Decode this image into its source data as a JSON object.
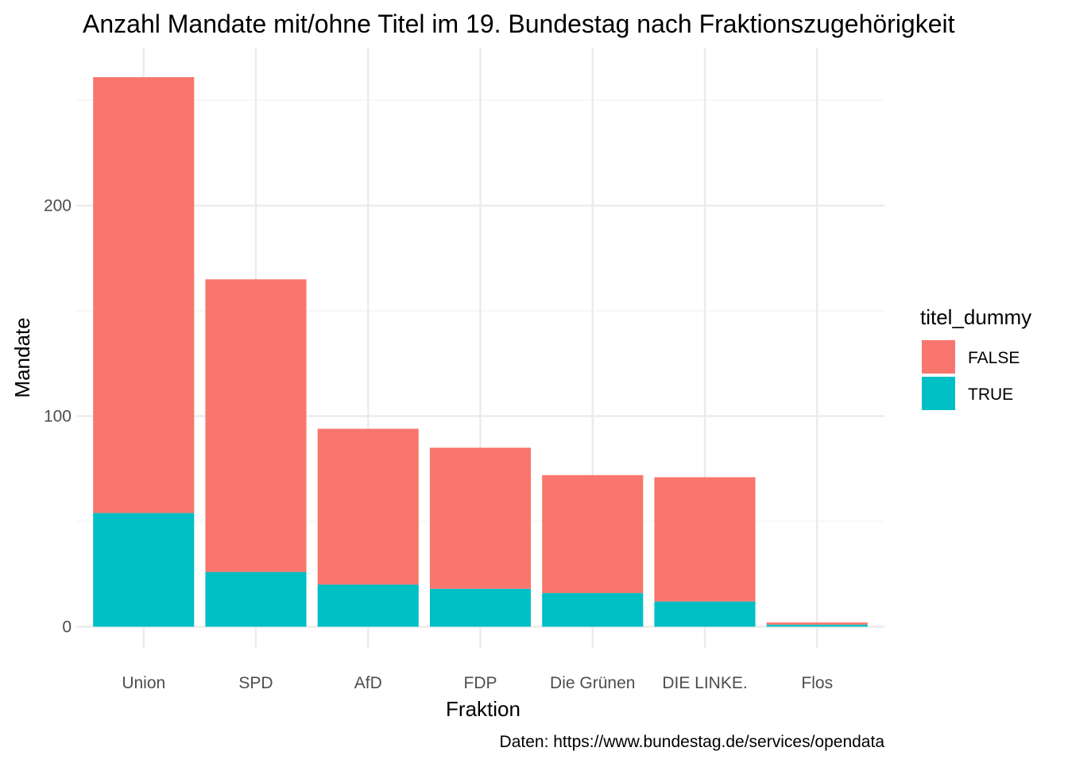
{
  "chart_data": {
    "type": "bar",
    "stacked": true,
    "title": "Anzahl Mandate mit/ohne Titel im 19. Bundestag nach Fraktionszugehörigkeit",
    "xlabel": "Fraktion",
    "ylabel": "Mandate",
    "caption": "Daten: https://www.bundestag.de/services/opendata",
    "categories": [
      "Union",
      "SPD",
      "AfD",
      "FDP",
      "Die Grünen",
      "DIE LINKE.",
      "Flos"
    ],
    "series": [
      {
        "name": "FALSE",
        "color": "#F8766D",
        "values": [
          207,
          139,
          74,
          67,
          56,
          59,
          1
        ]
      },
      {
        "name": "TRUE",
        "color": "#00BFC4",
        "values": [
          54,
          26,
          20,
          18,
          16,
          12,
          1
        ]
      }
    ],
    "yticks": [
      0,
      100,
      200
    ],
    "ylim": [
      -10,
      275
    ],
    "grid": true,
    "legend": {
      "title": "titel_dummy",
      "position": "right",
      "entries": [
        "FALSE",
        "TRUE"
      ]
    }
  }
}
